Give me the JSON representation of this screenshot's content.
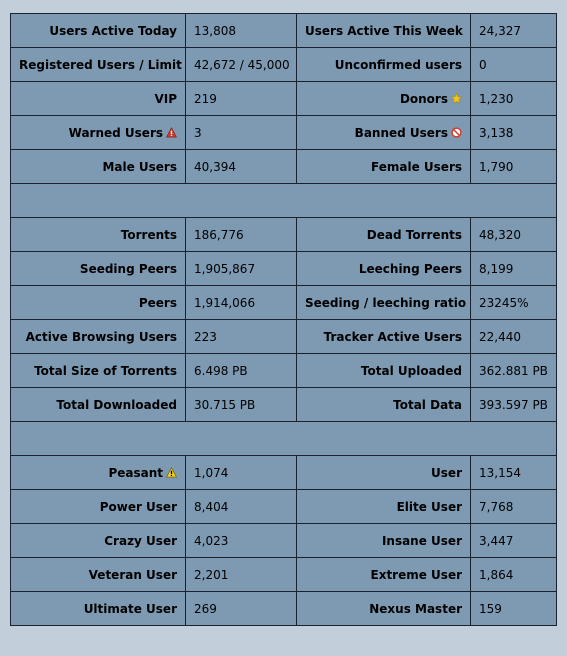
{
  "general": {
    "users_active_today": {
      "label": "Users Active Today",
      "value": "13,808"
    },
    "users_active_week": {
      "label": "Users Active This Week",
      "value": "24,327"
    },
    "registered_limit": {
      "label": "Registered Users / Limit",
      "value": "42,672 / 45,000"
    },
    "unconfirmed": {
      "label": "Unconfirmed users",
      "value": "0"
    },
    "vip": {
      "label": "VIP",
      "value": "219"
    },
    "donors": {
      "label": "Donors",
      "value": "1,230",
      "icon": "star-icon"
    },
    "warned": {
      "label": "Warned Users",
      "value": "3",
      "icon": "warning-icon"
    },
    "banned": {
      "label": "Banned Users",
      "value": "3,138",
      "icon": "banned-icon"
    },
    "male": {
      "label": "Male Users",
      "value": "40,394"
    },
    "female": {
      "label": "Female Users",
      "value": "1,790"
    }
  },
  "torrents": {
    "torrents": {
      "label": "Torrents",
      "value": "186,776"
    },
    "dead": {
      "label": "Dead Torrents",
      "value": "48,320"
    },
    "seeding": {
      "label": "Seeding Peers",
      "value": "1,905,867"
    },
    "leeching": {
      "label": "Leeching Peers",
      "value": "8,199"
    },
    "peers": {
      "label": "Peers",
      "value": "1,914,066"
    },
    "ratio": {
      "label": "Seeding / leeching ratio",
      "value": "23245%"
    },
    "browsing": {
      "label": "Active Browsing Users",
      "value": "223"
    },
    "tracker": {
      "label": "Tracker Active Users",
      "value": "22,440"
    },
    "size": {
      "label": "Total Size of Torrents",
      "value": "6.498 PB"
    },
    "uploaded": {
      "label": "Total Uploaded",
      "value": "362.881 PB"
    },
    "downloaded": {
      "label": "Total Downloaded",
      "value": "30.715 PB"
    },
    "total": {
      "label": "Total Data",
      "value": "393.597 PB"
    }
  },
  "classes": {
    "peasant": {
      "label": "Peasant",
      "value": "1,074",
      "icon": "warning-icon"
    },
    "user": {
      "label": "User",
      "value": "13,154"
    },
    "power": {
      "label": "Power User",
      "value": "8,404"
    },
    "elite": {
      "label": "Elite User",
      "value": "7,768"
    },
    "crazy": {
      "label": "Crazy User",
      "value": "4,023"
    },
    "insane": {
      "label": "Insane User",
      "value": "3,447"
    },
    "veteran": {
      "label": "Veteran User",
      "value": "2,201"
    },
    "extreme": {
      "label": "Extreme User",
      "value": "1,864"
    },
    "ultimate": {
      "label": "Ultimate User",
      "value": "269"
    },
    "nexus": {
      "label": "Nexus Master",
      "value": "159"
    }
  },
  "colors": {
    "cell_bg": "#7d9ab2",
    "page_bg": "#c2cfdb",
    "border": "#1a2230",
    "warning_red": "#d23c2c",
    "warning_yellow": "#f2d21c",
    "star_yellow": "#f4c51c"
  }
}
